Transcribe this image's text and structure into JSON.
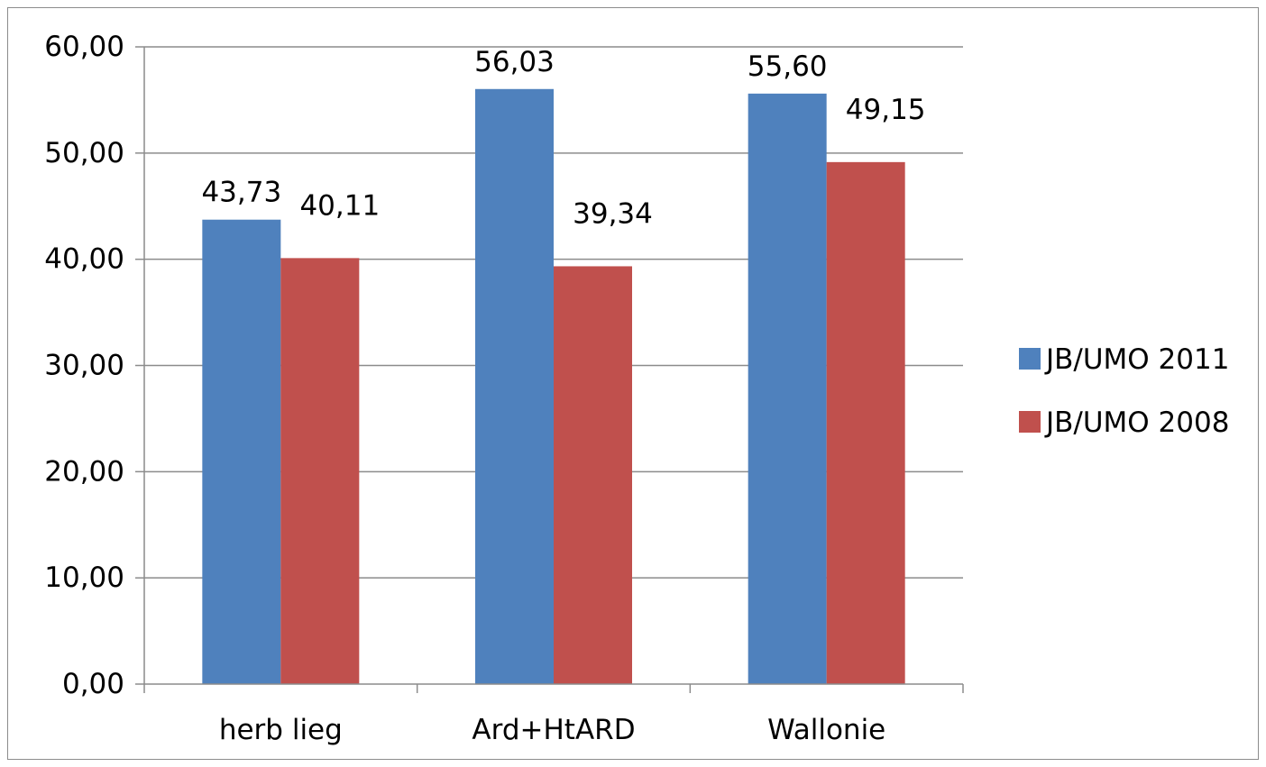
{
  "chart_data": {
    "type": "bar",
    "title": "",
    "xlabel": "",
    "ylabel": "",
    "categories": [
      "herb lieg",
      "Ard+HtARD",
      "Wallonie"
    ],
    "series": [
      {
        "name": "JB/UMO 2011",
        "values": [
          43.73,
          56.03,
          55.6
        ],
        "labels": [
          "43,73",
          "56,03",
          "55,60"
        ],
        "color": "#4F81BD"
      },
      {
        "name": "JB/UMO 2008",
        "values": [
          40.11,
          39.34,
          49.15
        ],
        "labels": [
          "40,11",
          "39,34",
          "49,15"
        ],
        "color": "#C0504D"
      }
    ],
    "ylim": [
      0,
      60
    ],
    "yticks": [
      0,
      10,
      20,
      30,
      40,
      50,
      60
    ],
    "ytick_labels": [
      "0,00",
      "10,00",
      "20,00",
      "30,00",
      "40,00",
      "50,00",
      "60,00"
    ],
    "grid": true,
    "legend_position": "right"
  }
}
